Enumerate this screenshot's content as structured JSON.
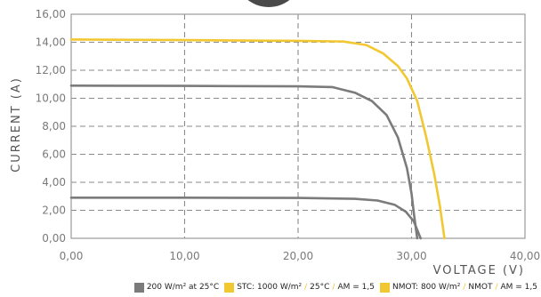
{
  "chart_data": {
    "type": "line",
    "title": "",
    "xlabel": "VOLTAGE (V)",
    "ylabel": "CURRENT (A)",
    "xlim": [
      0,
      40
    ],
    "ylim": [
      0,
      16
    ],
    "x_ticks": [
      "0,00",
      "10,00",
      "20,00",
      "30,00",
      "40,00"
    ],
    "y_ticks": [
      "0,00",
      "2,00",
      "4,00",
      "6,00",
      "8,00",
      "10,00",
      "12,00",
      "14,00",
      "16,00"
    ],
    "grid": true,
    "legend_position": "bottom-right",
    "series": [
      {
        "color": "#7b7b7b",
        "points": [
          [
            0,
            2.9
          ],
          [
            10,
            2.9
          ],
          [
            20,
            2.88
          ],
          [
            25,
            2.82
          ],
          [
            27,
            2.7
          ],
          [
            28.5,
            2.4
          ],
          [
            29.5,
            1.9
          ],
          [
            30.2,
            1.2
          ],
          [
            30.6,
            0.4
          ],
          [
            30.8,
            0
          ]
        ]
      },
      {
        "color": "#7b7b7b",
        "points": [
          [
            0,
            10.9
          ],
          [
            10,
            10.88
          ],
          [
            20,
            10.85
          ],
          [
            23,
            10.8
          ],
          [
            25,
            10.4
          ],
          [
            26.5,
            9.8
          ],
          [
            27.8,
            8.8
          ],
          [
            28.8,
            7.2
          ],
          [
            29.6,
            5.0
          ],
          [
            30,
            3.2
          ],
          [
            30.2,
            1.8
          ],
          [
            30.4,
            0.6
          ],
          [
            30.5,
            0
          ]
        ]
      },
      {
        "color": "#f2c832",
        "points": [
          [
            0,
            14.2
          ],
          [
            10,
            14.15
          ],
          [
            20,
            14.1
          ],
          [
            24,
            14.05
          ],
          [
            26,
            13.8
          ],
          [
            27.5,
            13.2
          ],
          [
            28.8,
            12.3
          ],
          [
            29.6,
            11.4
          ],
          [
            30.5,
            9.8
          ],
          [
            31.3,
            7.2
          ],
          [
            32,
            4.6
          ],
          [
            32.5,
            2.3
          ],
          [
            32.9,
            0
          ]
        ]
      }
    ]
  },
  "legend": {
    "items": [
      {
        "color": "#7b7b7b",
        "segments": [
          "200 W/m² at 25°C"
        ]
      },
      {
        "color": "#f2c832",
        "segments": [
          "STC: 1000 W/m²",
          "25°C",
          "AM = 1,5"
        ]
      },
      {
        "color": "#f2c832",
        "segments": [
          "NMOT: 800 W/m²",
          "NMOT",
          "AM = 1,5"
        ]
      }
    ]
  }
}
